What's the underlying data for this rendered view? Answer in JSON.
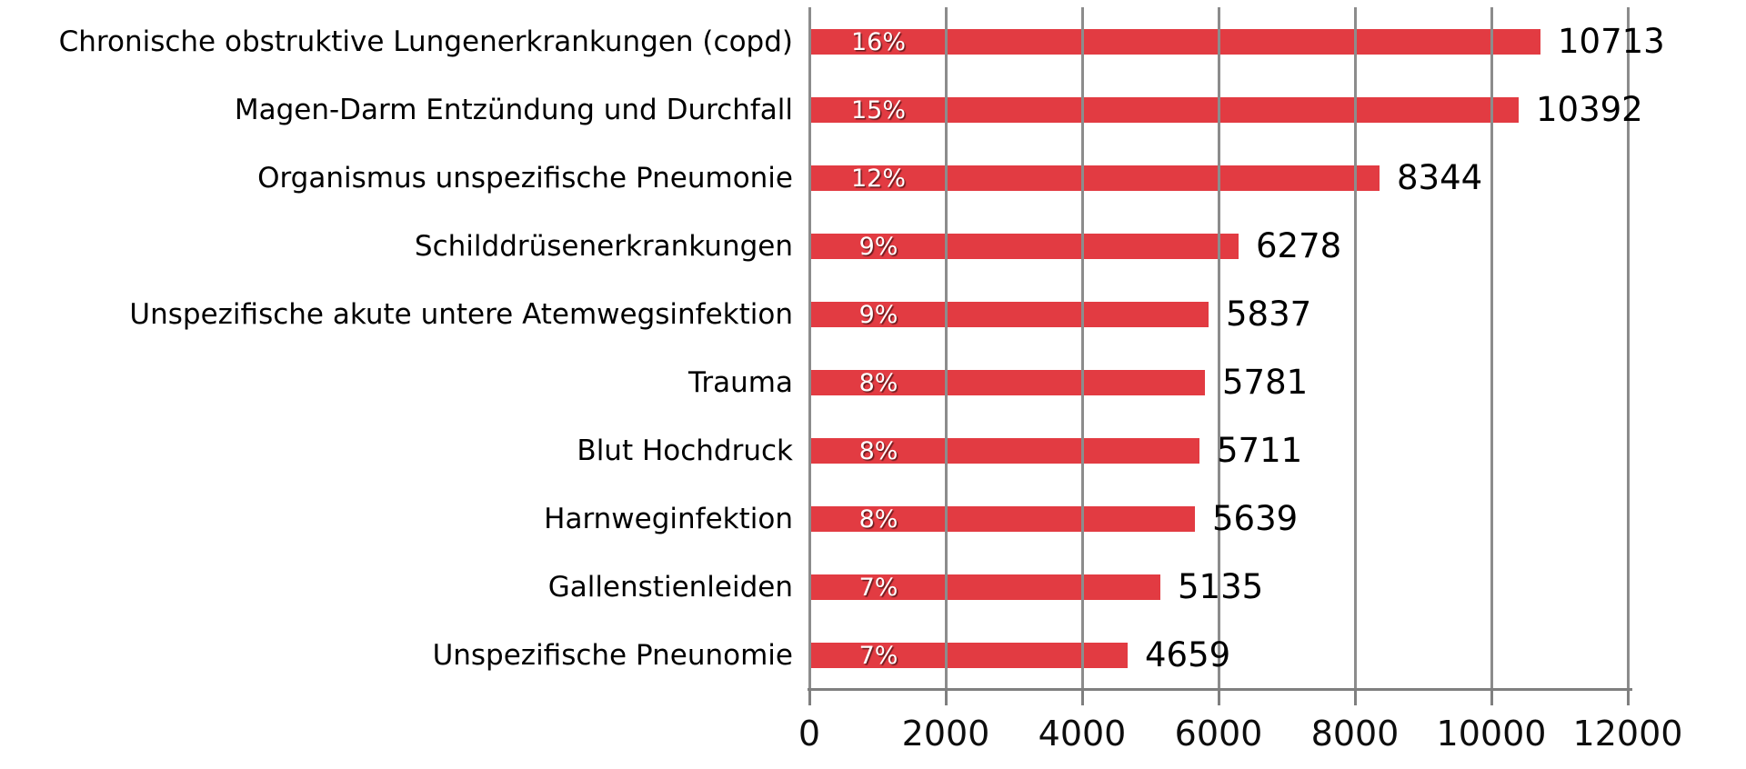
{
  "chart_data": {
    "type": "bar",
    "orientation": "horizontal",
    "title": "",
    "categories": [
      "Chronische obstruktive Lungenerkrankungen (copd)",
      "Magen-Darm Entzündung und Durchfall",
      "Organismus unspezifische Pneumonie",
      "Schilddrüsenerkrankungen",
      "Unspezifische akute untere Atemwegsinfektion",
      "Trauma",
      "Blut Hochdruck",
      "Harnweginfektion",
      "Gallenstienleiden",
      "Unspezifische Pneunomie"
    ],
    "values": [
      10713,
      10392,
      8344,
      6278,
      5837,
      5781,
      5711,
      5639,
      5135,
      4659
    ],
    "percent_labels": [
      "16%",
      "15%",
      "12%",
      "9%",
      "9%",
      "8%",
      "8%",
      "8%",
      "7%",
      "7%"
    ],
    "value_labels": [
      "10713",
      "10392",
      "8344",
      "6278",
      "5837",
      "5781",
      "5711",
      "5639",
      "5135",
      "4659"
    ],
    "x_ticks": [
      "0",
      "2000",
      "4000",
      "6000",
      "8000",
      "10000",
      "12000"
    ],
    "xlim": [
      0,
      12000
    ],
    "xlabel": "",
    "ylabel": "",
    "legend": "none",
    "grid": "vertical-gridlines-over-bars",
    "bar_color": "#e23b42",
    "gridline_color": "#8c8c8c",
    "axis_color": "#7f7f7f",
    "percent_label_color": "#ffffff",
    "value_label_color": "#000000",
    "percent_labels_position": "inside-left",
    "value_labels_position": "outside-end"
  }
}
